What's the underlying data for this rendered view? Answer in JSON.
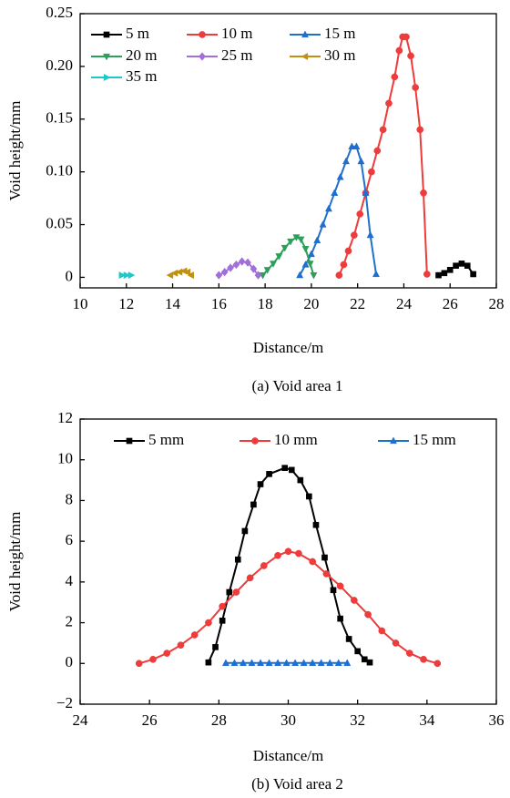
{
  "chart_data": [
    {
      "type": "line",
      "caption": "(a) Void area 1",
      "xlabel": "Distance/m",
      "ylabel": "Void height/mm",
      "xlim": [
        10,
        28
      ],
      "ylim": [
        -0.01,
        0.25
      ],
      "xticks": [
        10,
        12,
        14,
        16,
        18,
        20,
        22,
        24,
        26,
        28
      ],
      "yticks": [
        0,
        0.05,
        {
          "value": 0.1,
          "label": "0.10"
        },
        0.15,
        {
          "value": 0.2,
          "label": "0.20"
        },
        0.25
      ],
      "legend": "upper left",
      "series": [
        {
          "name": "5 m",
          "color": "#000000",
          "marker": "square",
          "x": [
            25.5,
            25.75,
            26.0,
            26.25,
            26.5,
            26.75,
            27.0
          ],
          "values": [
            0.002,
            0.004,
            0.007,
            0.011,
            0.013,
            0.011,
            0.003
          ]
        },
        {
          "name": "10 m",
          "color": "#ee3b3b",
          "marker": "circle",
          "x": [
            21.2,
            21.4,
            21.6,
            21.85,
            22.1,
            22.35,
            22.6,
            22.85,
            23.1,
            23.35,
            23.6,
            23.8,
            23.95,
            24.1,
            24.3,
            24.5,
            24.7,
            24.85,
            25.0
          ],
          "values": [
            0.002,
            0.012,
            0.025,
            0.04,
            0.06,
            0.08,
            0.1,
            0.12,
            0.14,
            0.165,
            0.19,
            0.215,
            0.228,
            0.228,
            0.21,
            0.18,
            0.14,
            0.08,
            0.003
          ]
        },
        {
          "name": "15 m",
          "color": "#1f6fd0",
          "marker": "triangle",
          "x": [
            19.5,
            19.75,
            20.0,
            20.25,
            20.5,
            20.75,
            21.0,
            21.25,
            21.5,
            21.75,
            21.95,
            22.15,
            22.35,
            22.55,
            22.8
          ],
          "values": [
            0.002,
            0.012,
            0.022,
            0.035,
            0.05,
            0.065,
            0.08,
            0.095,
            0.11,
            0.124,
            0.124,
            0.11,
            0.08,
            0.04,
            0.003
          ]
        },
        {
          "name": "20 m",
          "color": "#2e9e5b",
          "marker": "triangle-down",
          "x": [
            17.9,
            18.1,
            18.35,
            18.6,
            18.85,
            19.1,
            19.35,
            19.55,
            19.75,
            19.95,
            20.1
          ],
          "values": [
            0.002,
            0.007,
            0.013,
            0.02,
            0.028,
            0.034,
            0.038,
            0.036,
            0.027,
            0.013,
            0.002
          ]
        },
        {
          "name": "25 m",
          "color": "#a070d8",
          "marker": "diamond",
          "x": [
            16.0,
            16.25,
            16.5,
            16.75,
            17.0,
            17.25,
            17.5,
            17.7
          ],
          "values": [
            0.002,
            0.005,
            0.009,
            0.012,
            0.015,
            0.014,
            0.008,
            0.002
          ]
        },
        {
          "name": "30 m",
          "color": "#c09010",
          "marker": "triangle-left",
          "x": [
            13.9,
            14.1,
            14.3,
            14.5,
            14.65,
            14.8
          ],
          "values": [
            0.002,
            0.004,
            0.005,
            0.006,
            0.005,
            0.002
          ]
        },
        {
          "name": "35 m",
          "color": "#1ec8c8",
          "marker": "triangle-right",
          "x": [
            11.8,
            12.0,
            12.2
          ],
          "values": [
            0.002,
            0.002,
            0.002
          ]
        }
      ]
    },
    {
      "type": "line",
      "caption": "(b) Void area 2",
      "xlabel": "Distance/m",
      "ylabel": "Void height/mm",
      "xlim": [
        24,
        36
      ],
      "ylim": [
        -2,
        12
      ],
      "xticks": [
        24,
        26,
        28,
        30,
        32,
        34,
        36
      ],
      "yticks": [
        {
          "value": -2,
          "label": "−2"
        },
        0,
        2,
        4,
        6,
        8,
        10,
        12
      ],
      "legend": "upper center",
      "series": [
        {
          "name": "5 mm",
          "color": "#000000",
          "marker": "square",
          "x": [
            27.7,
            27.9,
            28.1,
            28.3,
            28.55,
            28.75,
            29.0,
            29.2,
            29.45,
            29.9,
            30.1,
            30.35,
            30.6,
            30.8,
            31.05,
            31.3,
            31.5,
            31.75,
            32.0,
            32.2,
            32.35
          ],
          "values": [
            0.05,
            0.8,
            2.1,
            3.5,
            5.1,
            6.5,
            7.8,
            8.8,
            9.3,
            9.6,
            9.5,
            9.0,
            8.2,
            6.8,
            5.2,
            3.6,
            2.2,
            1.2,
            0.6,
            0.2,
            0.05
          ]
        },
        {
          "name": "10 mm",
          "color": "#ee3b3b",
          "marker": "circle",
          "x": [
            25.7,
            26.1,
            26.5,
            26.9,
            27.3,
            27.7,
            28.1,
            28.5,
            28.9,
            29.3,
            29.7,
            30.0,
            30.3,
            30.7,
            31.1,
            31.5,
            31.9,
            32.3,
            32.7,
            33.1,
            33.5,
            33.9,
            34.3
          ],
          "values": [
            0.0,
            0.2,
            0.5,
            0.9,
            1.4,
            2.0,
            2.8,
            3.5,
            4.2,
            4.8,
            5.3,
            5.5,
            5.4,
            5.0,
            4.4,
            3.8,
            3.1,
            2.4,
            1.6,
            1.0,
            0.5,
            0.2,
            0.0
          ]
        },
        {
          "name": "15 mm",
          "color": "#1f6fd0",
          "marker": "triangle",
          "x": [
            28.2,
            28.45,
            28.7,
            28.95,
            29.2,
            29.45,
            29.7,
            29.95,
            30.2,
            30.45,
            30.7,
            30.95,
            31.2,
            31.45,
            31.7
          ],
          "values": [
            0.02,
            0.02,
            0.02,
            0.02,
            0.02,
            0.02,
            0.02,
            0.02,
            0.02,
            0.02,
            0.02,
            0.02,
            0.02,
            0.02,
            0.02
          ]
        }
      ]
    }
  ]
}
